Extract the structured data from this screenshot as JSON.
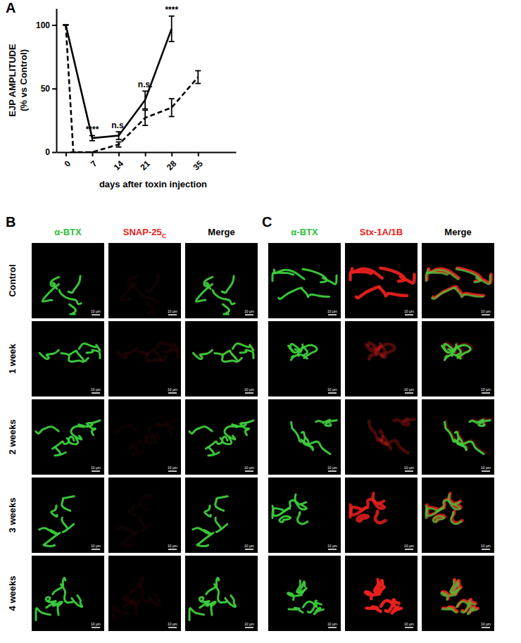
{
  "chart_data": {
    "type": "line",
    "x_label": "days after toxin injection",
    "y_label": [
      "EJP AMPLITUDE",
      "(% vs Control)"
    ],
    "xlim": [
      -2.5,
      45
    ],
    "xticks": [
      0,
      7,
      14,
      21,
      28,
      35
    ],
    "ylim": [
      0,
      113
    ],
    "yticks": [
      0,
      50,
      100
    ],
    "series": [
      {
        "color": "#000000",
        "line_style": "solid",
        "x": [
          0,
          7,
          14,
          21,
          28
        ],
        "values": [
          100,
          11,
          13,
          41,
          97
        ],
        "errors": [
          0,
          2,
          3,
          7,
          10
        ]
      },
      {
        "color": "#000000",
        "line_style": "dashed",
        "x": [
          0,
          2,
          7,
          14,
          21,
          28,
          35
        ],
        "values": [
          100,
          0,
          0,
          6,
          27,
          35,
          59
        ],
        "errors": [
          0,
          0,
          0,
          2,
          6,
          7,
          5
        ]
      }
    ],
    "annotations": [
      {
        "x": 7,
        "text": "****"
      },
      {
        "x": 14,
        "text": "n.s."
      },
      {
        "x": 21,
        "text": "n.s."
      },
      {
        "x": 28,
        "text": "****"
      }
    ]
  },
  "panel_labels": [
    "A",
    "B",
    "C"
  ],
  "image_panels": [
    {
      "columns": [
        {
          "text": "α-BTX",
          "color": "#2fbf3a"
        },
        {
          "text": "SNAP-25",
          "subscript": "C",
          "color": "#e8201c"
        },
        {
          "text": "Merge",
          "color": "#000000"
        }
      ]
    },
    {
      "columns": [
        {
          "text": "α-BTX",
          "color": "#2fbf3a"
        },
        {
          "text": "Stx-1A/1B",
          "color": "#e8201c"
        },
        {
          "text": "Merge",
          "color": "#000000"
        }
      ]
    }
  ],
  "row_labels": [
    "Control",
    "1 week",
    "2 weeks",
    "3 weeks",
    "4 weeks"
  ],
  "scale_bar": "10 µm"
}
